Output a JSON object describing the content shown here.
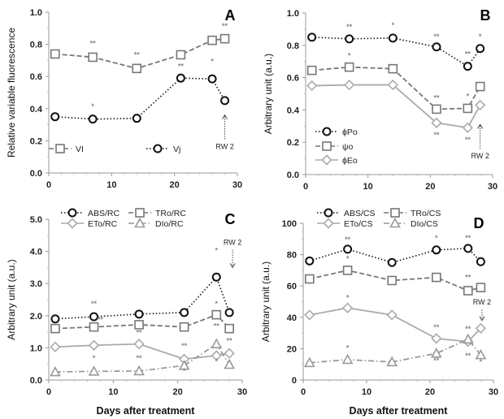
{
  "chart_data": [
    {
      "type": "line",
      "panel_label": "A",
      "ylabel": "Relative variable fluorescence",
      "xlabel": "",
      "xlim": [
        0,
        30
      ],
      "ylim": [
        0,
        1.0
      ],
      "xticks": [
        "0",
        "10",
        "20",
        "30"
      ],
      "yticks": [
        "0.0",
        "0.2",
        "0.4",
        "0.6",
        "0.8",
        "1.0"
      ],
      "x": [
        1,
        7,
        14,
        21,
        26,
        28
      ],
      "legend_placement": "lower-left, inline",
      "series": [
        {
          "name": "VI",
          "marker": "square",
          "line": "dashed",
          "color": "#777777",
          "values": [
            0.74,
            0.72,
            0.65,
            0.735,
            0.825,
            0.835
          ]
        },
        {
          "name": "Vj",
          "marker": "circle",
          "line": "dotted",
          "color": "#111111",
          "values": [
            0.35,
            0.335,
            0.34,
            0.59,
            0.585,
            0.45
          ]
        }
      ],
      "annotations": [
        {
          "text": "**",
          "x": 7,
          "y": 0.79
        },
        {
          "text": "**",
          "x": 14,
          "y": 0.72
        },
        {
          "text": "**",
          "x": 28,
          "y": 0.9
        },
        {
          "text": "*",
          "x": 7,
          "y": 0.4
        },
        {
          "text": "**",
          "x": 21,
          "y": 0.65
        },
        {
          "text": "*",
          "x": 26,
          "y": 0.68
        }
      ],
      "rw": {
        "text": "RW 2",
        "x": 28,
        "y": 0.2,
        "arrow_to": 0.36,
        "direction": "up"
      }
    },
    {
      "type": "line",
      "panel_label": "B",
      "ylabel": "Arbitrary unit (a.u.)",
      "xlabel": "",
      "xlim": [
        0,
        30
      ],
      "ylim": [
        0,
        1.0
      ],
      "xticks": [
        "0",
        "10",
        "20",
        "30"
      ],
      "yticks": [
        "0.0",
        "0.2",
        "0.4",
        "0.6",
        "0.8",
        "1.0"
      ],
      "x": [
        1,
        7,
        14,
        21,
        26,
        28
      ],
      "legend_placement": "lower-left",
      "series": [
        {
          "name": "ϕPo",
          "marker": "circle",
          "line": "dotted",
          "color": "#111111",
          "values": [
            0.85,
            0.84,
            0.845,
            0.79,
            0.67,
            0.78
          ]
        },
        {
          "name": "ψo",
          "marker": "square",
          "line": "dashed",
          "color": "#777777",
          "values": [
            0.645,
            0.665,
            0.655,
            0.405,
            0.41,
            0.545
          ]
        },
        {
          "name": "ϕEo",
          "marker": "diamond",
          "line": "solid",
          "color": "#aaaaaa",
          "values": [
            0.55,
            0.555,
            0.555,
            0.32,
            0.29,
            0.43
          ]
        }
      ],
      "annotations": [
        {
          "text": "**",
          "x": 7,
          "y": 0.9
        },
        {
          "text": "*",
          "x": 14,
          "y": 0.91
        },
        {
          "text": "**",
          "x": 21,
          "y": 0.84
        },
        {
          "text": "**",
          "x": 26,
          "y": 0.73
        },
        {
          "text": "*",
          "x": 28,
          "y": 0.84
        },
        {
          "text": "*",
          "x": 7,
          "y": 0.72
        },
        {
          "text": "**",
          "x": 21,
          "y": 0.46
        },
        {
          "text": "*",
          "x": 26,
          "y": 0.47
        },
        {
          "text": "**",
          "x": 21,
          "y": 0.23
        },
        {
          "text": "**",
          "x": 26,
          "y": 0.2
        }
      ],
      "rw": {
        "text": "RW 2",
        "x": 28,
        "y": 0.15,
        "arrow_to": 0.31,
        "direction": "up"
      }
    },
    {
      "type": "line",
      "panel_label": "C",
      "ylabel": "Arbitrary unit (a.u.)",
      "xlabel": "Days after treatment",
      "xlim": [
        0,
        30
      ],
      "ylim": [
        0,
        5.0
      ],
      "xticks": [
        "0",
        "10",
        "20",
        "30"
      ],
      "yticks": [
        "0.0",
        "1.0",
        "2.0",
        "3.0",
        "4.0",
        "5.0"
      ],
      "x": [
        1,
        7,
        14,
        21,
        26,
        28
      ],
      "legend_placement": "top",
      "series": [
        {
          "name": "ABS/RC",
          "marker": "circle",
          "line": "dotted",
          "color": "#111111",
          "values": [
            1.9,
            1.97,
            2.05,
            2.1,
            3.2,
            2.1
          ]
        },
        {
          "name": "TRo/RC",
          "marker": "square",
          "line": "dashed",
          "color": "#777777",
          "values": [
            1.6,
            1.65,
            1.72,
            1.65,
            2.03,
            1.6
          ]
        },
        {
          "name": "ETo/RC",
          "marker": "diamond",
          "line": "solid",
          "color": "#aaaaaa",
          "values": [
            1.03,
            1.08,
            1.12,
            0.65,
            0.76,
            0.83
          ]
        },
        {
          "name": "DIo/RC",
          "marker": "triangle",
          "line": "dashdot",
          "color": "#999999",
          "values": [
            0.25,
            0.27,
            0.28,
            0.45,
            1.12,
            0.48
          ]
        }
      ],
      "annotations": [
        {
          "text": "**",
          "x": 7,
          "y": 2.3
        },
        {
          "text": "**",
          "x": 8,
          "y": 1.8
        },
        {
          "text": "*",
          "x": 26,
          "y": 3.95
        },
        {
          "text": "*",
          "x": 26,
          "y": 2.3
        },
        {
          "text": "**",
          "x": 14,
          "y": 1.4
        },
        {
          "text": "**",
          "x": 21,
          "y": 0.98
        },
        {
          "text": "**",
          "x": 26,
          "y": 1.6
        },
        {
          "text": "**",
          "x": 28,
          "y": 1.15
        },
        {
          "text": "*",
          "x": 7,
          "y": 0.6
        },
        {
          "text": "**",
          "x": 14,
          "y": 0.6
        },
        {
          "text": "*",
          "x": 21,
          "y": 0.2
        },
        {
          "text": "*",
          "x": 26,
          "y": 0.5
        }
      ],
      "rw": {
        "text": "RW 2",
        "x": 28.5,
        "y": 4.1,
        "arrow_to": 3.5,
        "direction": "down"
      }
    },
    {
      "type": "line",
      "panel_label": "D",
      "ylabel": "Arbitrary unit (a.u.)",
      "xlabel": "Days after treatment",
      "xlim": [
        0,
        30
      ],
      "ylim": [
        0,
        100
      ],
      "xticks": [
        "0",
        "10",
        "20",
        "30"
      ],
      "yticks": [
        "0",
        "20",
        "40",
        "60",
        "80",
        "100"
      ],
      "x": [
        1,
        7,
        14,
        21,
        26,
        28
      ],
      "legend_placement": "top",
      "series": [
        {
          "name": "ABS/CS",
          "marker": "circle",
          "line": "dotted",
          "color": "#111111",
          "values": [
            76,
            83.5,
            75,
            83,
            84,
            75.5
          ]
        },
        {
          "name": "TRo/CS",
          "marker": "square",
          "line": "dashed",
          "color": "#777777",
          "values": [
            64.5,
            70,
            63.5,
            65.5,
            57,
            59
          ]
        },
        {
          "name": "ETo/CS",
          "marker": "diamond",
          "line": "solid",
          "color": "#aaaaaa",
          "values": [
            41.5,
            46,
            41.5,
            26.5,
            24.5,
            33
          ]
        },
        {
          "name": "DIo/CS",
          "marker": "triangle",
          "line": "dashdot",
          "color": "#999999",
          "values": [
            11,
            13,
            11.5,
            17,
            26,
            16
          ]
        }
      ],
      "annotations": [
        {
          "text": "**",
          "x": 7,
          "y": 88
        },
        {
          "text": "*",
          "x": 7,
          "y": 76
        },
        {
          "text": "*",
          "x": 21,
          "y": 89
        },
        {
          "text": "**",
          "x": 26,
          "y": 89
        },
        {
          "text": "**",
          "x": 26,
          "y": 64
        },
        {
          "text": "*",
          "x": 7,
          "y": 51
        },
        {
          "text": "**",
          "x": 21,
          "y": 32
        },
        {
          "text": "**",
          "x": 26,
          "y": 31
        },
        {
          "text": "*",
          "x": 7,
          "y": 19
        },
        {
          "text": "**",
          "x": 21,
          "y": 11
        },
        {
          "text": "**",
          "x": 26,
          "y": 14
        },
        {
          "text": "*",
          "x": 28,
          "y": 10
        }
      ],
      "rw": {
        "text": "RW 2",
        "x": 28.2,
        "y": 46,
        "arrow_to": 38,
        "direction": "down"
      }
    }
  ]
}
